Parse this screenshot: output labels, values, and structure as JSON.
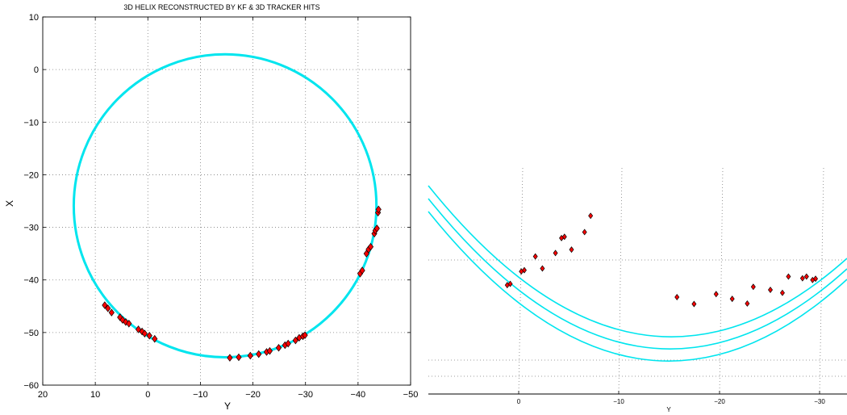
{
  "chart_data": [
    {
      "type": "scatter",
      "title": "3D HELIX RECONSTRUCTED BY KF & 3D TRACKER HITS",
      "xlabel": "Y",
      "ylabel": "X",
      "xlim": [
        20,
        -50
      ],
      "ylim": [
        -60,
        10
      ],
      "x_ticks": [
        20,
        10,
        0,
        -10,
        -20,
        -30,
        -40,
        -50
      ],
      "y_ticks": [
        10,
        0,
        -10,
        -20,
        -30,
        -40,
        -50,
        -60
      ],
      "grid": true,
      "colors": {
        "helix": "#00e5ee",
        "hit_fill": "#ff0000",
        "hit_edge": "#000000"
      },
      "helix": {
        "center_y": -14.7,
        "center_x": -25.9,
        "radius": 28.8
      },
      "series": [
        {
          "y": [
            8.2,
            7.6,
            6.9,
            5.3,
            4.8,
            4.2,
            3.6,
            1.8,
            1.1,
            0.6,
            -0.3,
            -1.3,
            -15.6,
            -17.3,
            -19.5,
            -21.1,
            -22.6,
            -23.2,
            -24.9,
            -26.1,
            -26.7,
            -28.1,
            -28.8,
            -29.5,
            -29.9,
            -40.4,
            -40.8,
            -41.6,
            -42.0,
            -42.4,
            -43.1,
            -43.3,
            -43.6,
            -43.8,
            -43.9
          ],
          "x": [
            -44.8,
            -45.4,
            -46.2,
            -47.1,
            -47.6,
            -48.0,
            -48.3,
            -49.4,
            -49.8,
            -50.2,
            -50.6,
            -51.2,
            -54.8,
            -54.7,
            -54.4,
            -54.1,
            -53.7,
            -53.5,
            -52.9,
            -52.4,
            -52.1,
            -51.5,
            -51.0,
            -50.7,
            -50.5,
            -38.8,
            -38.2,
            -35.0,
            -34.2,
            -33.7,
            -31.2,
            -30.6,
            -30.2,
            -27.2,
            -26.6
          ]
        }
      ]
    },
    {
      "type": "scatter",
      "title": "",
      "xlabel": "Y",
      "ylabel": "",
      "x_ticks": [
        0,
        -10,
        -20,
        -30
      ],
      "grid": true,
      "series": [
        {
          "y": [
            -7.0,
            -6.4,
            -5.1,
            -4.4,
            -4.1,
            -3.5,
            -2.2,
            -1.5,
            -0.4,
            -0.1,
            1.0,
            1.3,
            -15.6,
            -17.3,
            -19.5,
            -21.1,
            -22.6,
            -23.2,
            -24.9,
            -26.1,
            -26.7,
            -28.1,
            -28.5,
            -29.1,
            -29.4
          ],
          "x": [
            -27.5,
            -31.3,
            -35.4,
            -32.4,
            -32.7,
            -36.2,
            -39.8,
            -37.0,
            -40.2,
            -40.5,
            -43.4,
            -43.7,
            -46.5,
            -48.1,
            -45.8,
            -46.9,
            -48.0,
            -44.1,
            -44.8,
            -45.5,
            -41.7,
            -42.1,
            -41.7,
            -42.5,
            -42.2
          ]
        }
      ]
    }
  ]
}
